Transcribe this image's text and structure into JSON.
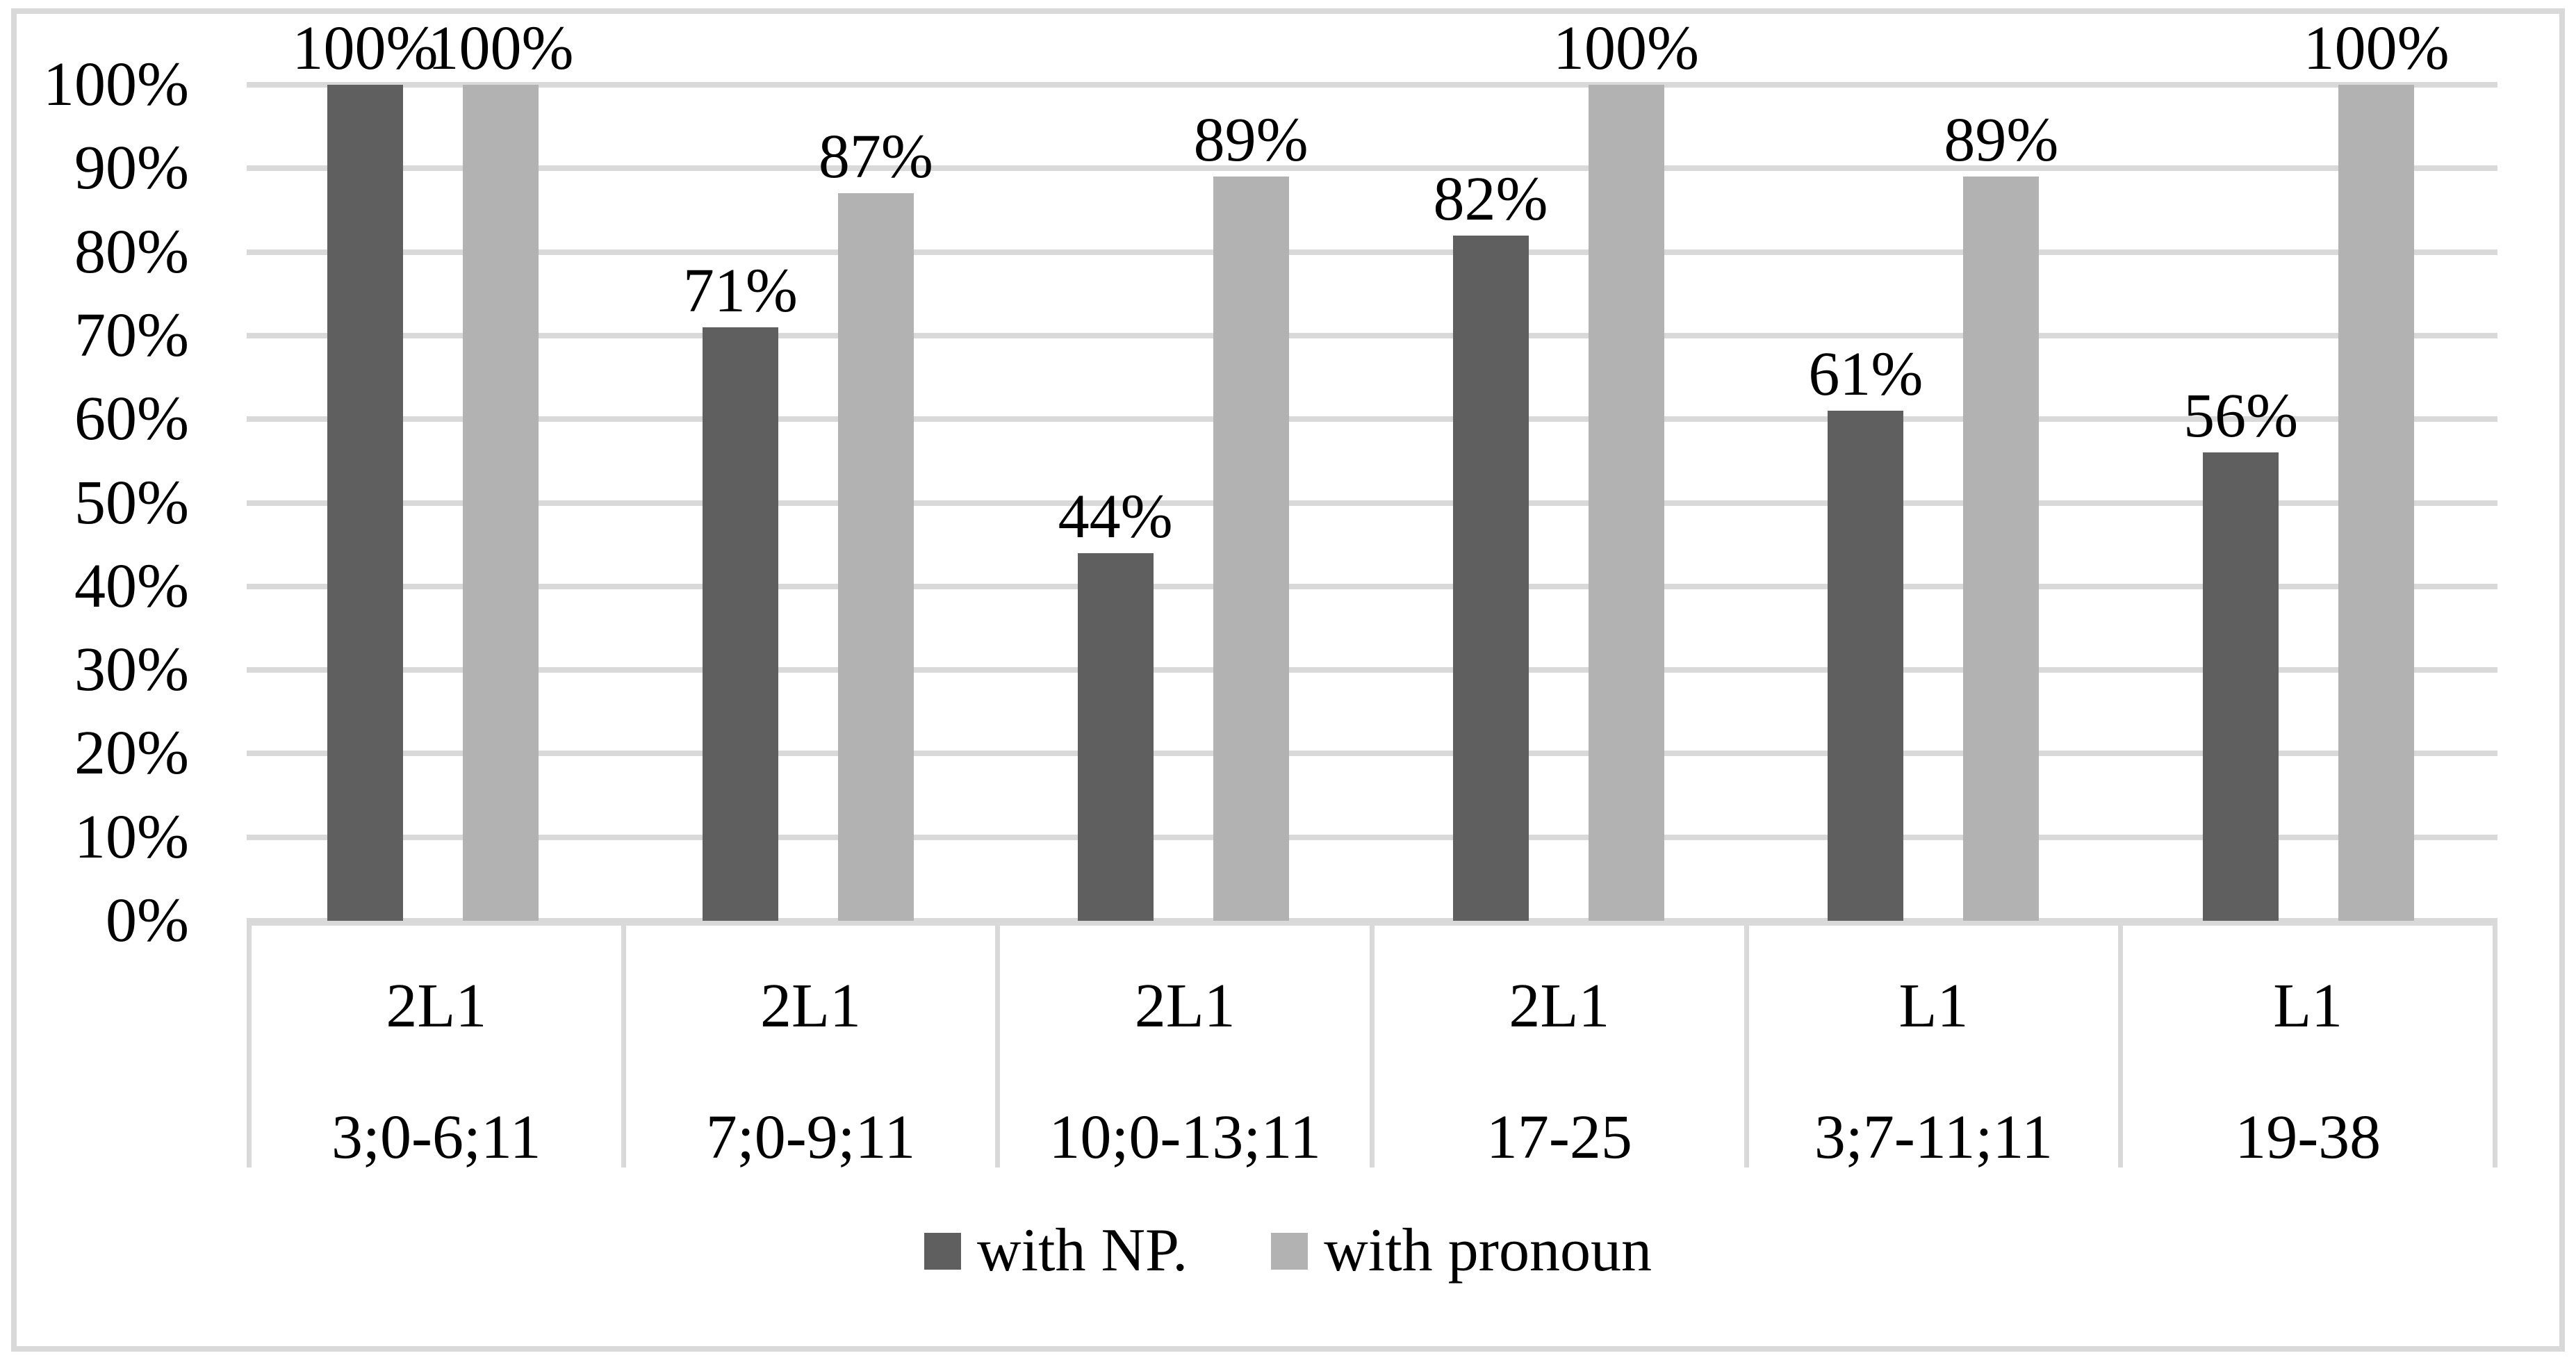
{
  "chart_data": {
    "type": "bar",
    "title": "",
    "xlabel": "",
    "ylabel": "",
    "grid": true,
    "legend_position": "bottom",
    "y_axis": {
      "min": 0,
      "max": 100,
      "tick_step": 10,
      "tick_labels": [
        "0%",
        "10%",
        "20%",
        "30%",
        "40%",
        "50%",
        "60%",
        "70%",
        "80%",
        "90%",
        "100%"
      ]
    },
    "groups": [
      {
        "line1": "2L1",
        "line2": "3;0-6;11"
      },
      {
        "line1": "2L1",
        "line2": "7;0-9;11"
      },
      {
        "line1": "2L1",
        "line2": "10;0-13;11"
      },
      {
        "line1": "2L1",
        "line2": "17-25"
      },
      {
        "line1": "L1",
        "line2": "3;7-11;11"
      },
      {
        "line1": "L1",
        "line2": "19-38"
      }
    ],
    "series": [
      {
        "name": "with NP.",
        "color": "#5f5f5f",
        "values": [
          100,
          71,
          44,
          82,
          61,
          56
        ],
        "labels": [
          "100%",
          "71%",
          "44%",
          "82%",
          "61%",
          "56%"
        ]
      },
      {
        "name": "with pronoun",
        "color": "#b2b2b2",
        "values": [
          100,
          87,
          89,
          100,
          89,
          100
        ],
        "labels": [
          "100%",
          "87%",
          "89%",
          "100%",
          "89%",
          "100%"
        ]
      }
    ]
  },
  "legend": {
    "items": [
      {
        "label": "with NP.",
        "color": "#5f5f5f"
      },
      {
        "label": "with pronoun",
        "color": "#b2b2b2"
      }
    ]
  },
  "colors": {
    "grid": "#d9d9d9",
    "border": "#d9d9d9",
    "text": "#000000",
    "background": "#ffffff"
  }
}
